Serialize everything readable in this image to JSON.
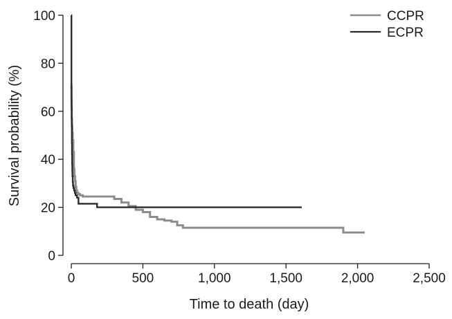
{
  "chart_data": {
    "type": "line",
    "step": true,
    "xlabel": "Time to death (day)",
    "ylabel": "Survival probability (%)",
    "xlim": [
      0,
      2500
    ],
    "ylim": [
      0,
      100
    ],
    "x_ticks": [
      0,
      500,
      1000,
      1500,
      2000,
      2500
    ],
    "x_tick_labels": [
      "0",
      "500",
      "1,000",
      "1,500",
      "2,000",
      "2,500"
    ],
    "y_ticks": [
      0,
      20,
      40,
      60,
      80,
      100
    ],
    "y_tick_labels": [
      "0",
      "20",
      "40",
      "60",
      "80",
      "100"
    ],
    "grid": false,
    "legend_position": "top-right",
    "series": [
      {
        "name": "CCPR",
        "color": "#8c8c8c",
        "x": [
          0,
          1,
          2,
          3,
          5,
          7,
          10,
          14,
          18,
          22,
          26,
          30,
          35,
          40,
          50,
          60,
          80,
          120,
          200,
          300,
          350,
          400,
          450,
          500,
          550,
          600,
          650,
          700,
          740,
          780,
          850,
          1000,
          1500,
          1890,
          1900,
          2050
        ],
        "y": [
          71,
          65,
          61,
          57,
          54,
          51,
          48,
          43,
          36,
          33,
          31,
          28.5,
          27,
          26,
          25.5,
          25,
          24.5,
          24.5,
          24.5,
          23.5,
          22,
          20.5,
          19,
          18,
          16,
          15,
          14.5,
          14,
          12.5,
          11.5,
          11.5,
          11.5,
          11.5,
          11.5,
          9.5,
          9.5
        ]
      },
      {
        "name": "ECPR",
        "color": "#2b2b2b",
        "x": [
          0,
          1,
          2,
          3,
          4,
          5,
          6,
          7,
          8,
          10,
          12,
          15,
          20,
          25,
          30,
          40,
          50,
          100,
          180,
          200,
          400,
          1000,
          1610
        ],
        "y": [
          100,
          70,
          62,
          54,
          47,
          42,
          38,
          35,
          33,
          30.5,
          29,
          28,
          27,
          26,
          25,
          24,
          21.5,
          21.5,
          20,
          20,
          20,
          20,
          20
        ]
      }
    ]
  }
}
